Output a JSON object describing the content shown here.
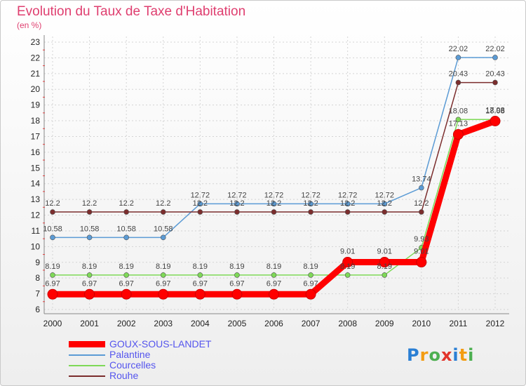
{
  "chart_data": {
    "type": "line",
    "title": "Evolution du Taux de Taxe d'Habitation",
    "subtitle": "(en %)",
    "xlabel": "",
    "ylabel": "",
    "x": [
      "2000",
      "2001",
      "2002",
      "2003",
      "2004",
      "2005",
      "2006",
      "2007",
      "2008",
      "2009",
      "2010",
      "2011",
      "2012"
    ],
    "ylim": [
      6,
      23
    ],
    "yticks": [
      6,
      7,
      8,
      9,
      10,
      11,
      12,
      13,
      14,
      15,
      16,
      17,
      18,
      19,
      20,
      21,
      22,
      23
    ],
    "grid": true,
    "legend_position": "bottom-left",
    "series": [
      {
        "name": "GOUX-SOUS-LANDET",
        "color": "#ff0000",
        "values": [
          6.97,
          6.97,
          6.97,
          6.97,
          6.97,
          6.97,
          6.97,
          6.97,
          9.01,
          9.01,
          9.01,
          17.13,
          17.98
        ],
        "labels": [
          "6.97",
          "6.97",
          "6.97",
          "6.97",
          "6.97",
          "6.97",
          "6.97",
          "6.97",
          "9.01",
          "9.01",
          "9.01",
          "17.13",
          "17.98"
        ]
      },
      {
        "name": "Palantine",
        "color": "#5b9bd5",
        "values": [
          10.58,
          10.58,
          10.58,
          10.58,
          12.72,
          12.72,
          12.72,
          12.72,
          12.72,
          12.72,
          13.74,
          22.02,
          22.02
        ],
        "labels": [
          "10.58",
          "10.58",
          "10.58",
          "10.58",
          "12.72",
          "12.72",
          "12.72",
          "12.72",
          "12.72",
          "12.72",
          "13.74",
          "22.02",
          "22.02"
        ]
      },
      {
        "name": "Courcelles",
        "color": "#7ed957",
        "values": [
          8.19,
          8.19,
          8.19,
          8.19,
          8.19,
          8.19,
          8.19,
          8.19,
          8.19,
          8.19,
          9.93,
          18.08,
          18.08
        ],
        "labels": [
          "8.19",
          "8.19",
          "8.19",
          "8.19",
          "8.19",
          "8.19",
          "8.19",
          "8.19",
          "8.19",
          "8.19",
          "9.93",
          "18.08",
          "18.08"
        ]
      },
      {
        "name": "Rouhe",
        "color": "#7b2d2d",
        "values": [
          12.2,
          12.2,
          12.2,
          12.2,
          12.2,
          12.2,
          12.2,
          12.2,
          12.2,
          12.2,
          12.2,
          20.43,
          20.43
        ],
        "labels": [
          "12.2",
          "12.2",
          "12.2",
          "12.2",
          "12.2",
          "12.2",
          "12.2",
          "12.2",
          "12.2",
          "12.2",
          "12.2",
          "20.43",
          "20.43"
        ]
      }
    ]
  },
  "logo": {
    "letters": [
      "P",
      "r",
      "o",
      "x",
      "i",
      "t",
      "i"
    ]
  }
}
